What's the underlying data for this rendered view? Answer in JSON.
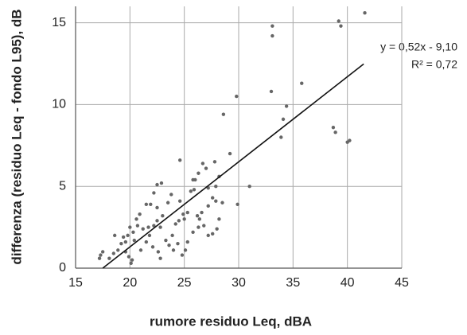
{
  "chart_data": {
    "type": "scatter",
    "xlabel": "rumore residuo Leq, dBA",
    "ylabel": "differenza (residuo Leq - fondo L95), dB",
    "annotations": [
      "y = 0,52x - 9,10",
      "R² = 0,72"
    ],
    "xlim": [
      15,
      45
    ],
    "xticks": [
      15,
      20,
      25,
      30,
      35,
      40,
      45
    ],
    "ylim": [
      0,
      16
    ],
    "yticks": [
      0,
      5,
      10,
      15
    ],
    "grid": true,
    "color": "#666666",
    "x": [
      41.6,
      39.2,
      39.4,
      33.1,
      33.1,
      33.0,
      35.8,
      34.4,
      34.1,
      29.8,
      28.6,
      33.9,
      38.7,
      38.9,
      40.0,
      40.2,
      29.2,
      31.0,
      29.9,
      28.5,
      27.9,
      28.2,
      27.0,
      26.7,
      27.8,
      26.3,
      25.8,
      26.0,
      24.6,
      25.6,
      25.9,
      27.2,
      27.6,
      27.9,
      27.2,
      26.6,
      26.2,
      25.3,
      24.9,
      25.0,
      24.5,
      24.2,
      24.6,
      23.8,
      23.5,
      22.9,
      22.5,
      22.2,
      21.9,
      21.5,
      22.5,
      23.0,
      22.5,
      22.8,
      22.2,
      21.7,
      21.2,
      20.9,
      20.6,
      20.7,
      20.3,
      20.0,
      19.8,
      19.6,
      19.4,
      19.2,
      18.6,
      18.9,
      18.5,
      18.1,
      17.5,
      17.3,
      17.2,
      19.6,
      19.9,
      20.2,
      20.1,
      21.0,
      21.5,
      22.1,
      22.6,
      22.8,
      23.6,
      24.0,
      24.4,
      24.8,
      25.1,
      25.3,
      25.8,
      26.3,
      26.8,
      27.2,
      27.6,
      28.2,
      28.0,
      26.4,
      23.9,
      23.3,
      21.8,
      20.4
    ],
    "values": [
      15.6,
      15.1,
      14.8,
      14.8,
      14.2,
      10.8,
      11.3,
      9.9,
      9.1,
      10.5,
      9.4,
      8.0,
      8.6,
      8.3,
      7.7,
      7.8,
      7.0,
      5.0,
      3.9,
      4.0,
      5.0,
      5.6,
      6.1,
      6.4,
      6.5,
      5.8,
      5.4,
      5.4,
      6.6,
      4.7,
      4.8,
      4.9,
      4.3,
      4.1,
      3.8,
      3.4,
      3.2,
      3.4,
      3.3,
      3.0,
      2.9,
      2.7,
      4.1,
      4.5,
      4.0,
      5.2,
      5.1,
      4.6,
      3.9,
      3.9,
      3.7,
      3.2,
      2.9,
      2.5,
      2.6,
      2.5,
      2.4,
      3.3,
      3.0,
      2.6,
      2.2,
      2.5,
      2.0,
      1.6,
      1.9,
      1.5,
      2.0,
      1.1,
      0.9,
      0.6,
      1.0,
      0.8,
      0.6,
      1.0,
      0.7,
      0.5,
      0.3,
      1.1,
      1.6,
      1.3,
      1.0,
      0.6,
      1.4,
      1.1,
      1.5,
      0.8,
      1.1,
      1.6,
      2.2,
      2.5,
      2.6,
      2.0,
      2.1,
      3.0,
      2.4,
      3.0,
      2.0,
      1.7,
      2.0,
      1.7
    ],
    "trendline": {
      "x": [
        17.5,
        41.5
      ],
      "values": [
        0,
        12.48
      ],
      "color": "#111111"
    }
  }
}
